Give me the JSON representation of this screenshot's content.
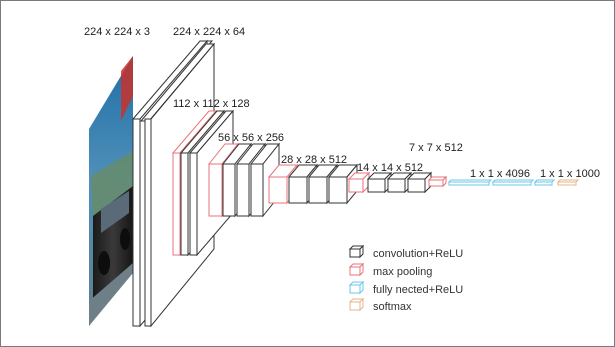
{
  "diagram": {
    "dimension_labels": {
      "input": "224 x 224 x 3",
      "conv1": "224 x 224 x 64",
      "conv2": "112 x 112 x 128",
      "conv3": "56 x 56 x 256",
      "conv4": "28 x 28 x 512",
      "conv5": "14 x 14 x 512",
      "pool5": "7 x 7 x 512",
      "fc": "1 x 1 x 4096",
      "softmax": "1 x 1 x 1000"
    },
    "legend": [
      {
        "label": "convolution+ReLU",
        "color": "#333333"
      },
      {
        "label": "max pooling",
        "color": "#e8737a"
      },
      {
        "label": "fully nected+ReLU",
        "color": "#6cc7e6"
      },
      {
        "label": "softmax",
        "color": "#e6b48a"
      }
    ],
    "colors": {
      "conv": "#333333",
      "pool": "#e8737a",
      "fc": "#6cc7e6",
      "softmax": "#e6b48a"
    },
    "input_image_description_icon": "car-photo"
  }
}
